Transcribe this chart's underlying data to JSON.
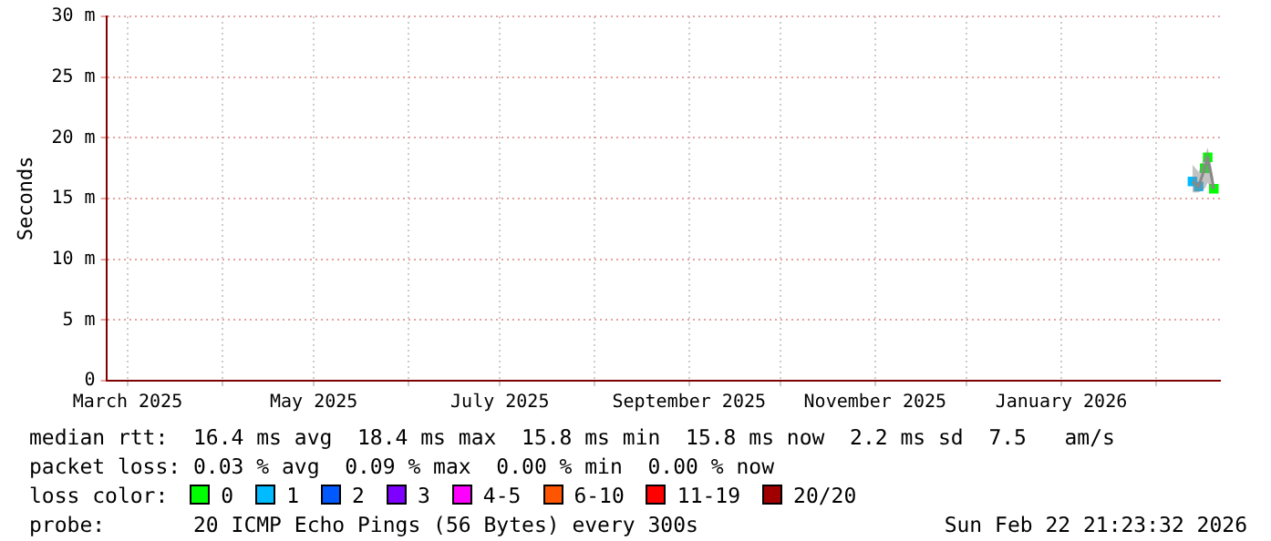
{
  "chart_data": {
    "type": "scatter",
    "ylabel": "Seconds",
    "x": [
      "2026-02-13",
      "2026-02-15",
      "2026-02-17",
      "2026-02-18",
      "2026-02-20"
    ],
    "xlim": [
      "2025-02-22",
      "2026-02-22"
    ],
    "xticks": [
      {
        "value": "2025-03-01",
        "label": "March 2025"
      },
      {
        "value": "2025-04-01",
        "label": null
      },
      {
        "value": "2025-05-01",
        "label": "May 2025"
      },
      {
        "value": "2025-06-01",
        "label": null
      },
      {
        "value": "2025-07-01",
        "label": "July 2025"
      },
      {
        "value": "2025-08-01",
        "label": null
      },
      {
        "value": "2025-09-01",
        "label": "September 2025"
      },
      {
        "value": "2025-10-01",
        "label": null
      },
      {
        "value": "2025-11-01",
        "label": "November 2025"
      },
      {
        "value": "2025-12-01",
        "label": null
      },
      {
        "value": "2026-01-01",
        "label": "January 2026"
      },
      {
        "value": "2026-02-01",
        "label": null
      }
    ],
    "ylim": [
      0,
      30
    ],
    "yticks": [
      0,
      {
        "value": 5,
        "label": "5 m"
      },
      {
        "value": 10,
        "label": "10 m"
      },
      {
        "value": 15,
        "label": "15 m"
      },
      {
        "value": 20,
        "label": "20 m"
      },
      {
        "value": 25,
        "label": "25 m"
      },
      {
        "value": 30,
        "label": "30 m"
      }
    ],
    "grid": true,
    "marker": "square",
    "legend": "bottom",
    "legend_title": "loss color:",
    "series": [
      {
        "type": "line",
        "marker": "none",
        "color": "#888888",
        "values": [
          16.4,
          16.0,
          17.5,
          18.4,
          15.8
        ],
        "lower": [
          15.5,
          15.5,
          15.8,
          16.3,
          15.5
        ],
        "upper": [
          17.8,
          17.2,
          18.5,
          19.2,
          16.5
        ]
      },
      {
        "name": "0",
        "color": "#00ff00",
        "values": [
          null,
          null,
          17.5,
          18.4,
          15.8
        ]
      },
      {
        "name": "1",
        "color": "#00bbff",
        "values": [
          16.4,
          16.0,
          null,
          null,
          null
        ]
      },
      {
        "name": "2",
        "color": "#0059ff",
        "values": [
          null,
          null,
          null,
          null,
          null
        ]
      },
      {
        "name": "3",
        "color": "#7e00ff",
        "values": [
          null,
          null,
          null,
          null,
          null
        ]
      },
      {
        "name": "4-5",
        "color": "#ff00ff",
        "values": [
          null,
          null,
          null,
          null,
          null
        ]
      },
      {
        "name": "6-10",
        "color": "#ff5500",
        "values": [
          null,
          null,
          null,
          null,
          null
        ]
      },
      {
        "name": "11-19",
        "color": "#ff0000",
        "values": [
          null,
          null,
          null,
          null,
          null
        ]
      },
      {
        "name": "20/20",
        "color": "#a10000",
        "values": [
          null,
          null,
          null,
          null,
          null
        ]
      }
    ],
    "annotations": [
      "median rtt:  16.4 ms avg  18.4 ms max  15.8 ms min  15.8 ms now  2.2 ms sd  7.5   am/s",
      "packet loss: 0.03 % avg  0.09 % max  0.00 % min  0.00 % now",
      "probe:       20 ICMP Echo Pings (56 Bytes) every 300s",
      "Sun Feb 22 21:23:32 2026"
    ]
  }
}
